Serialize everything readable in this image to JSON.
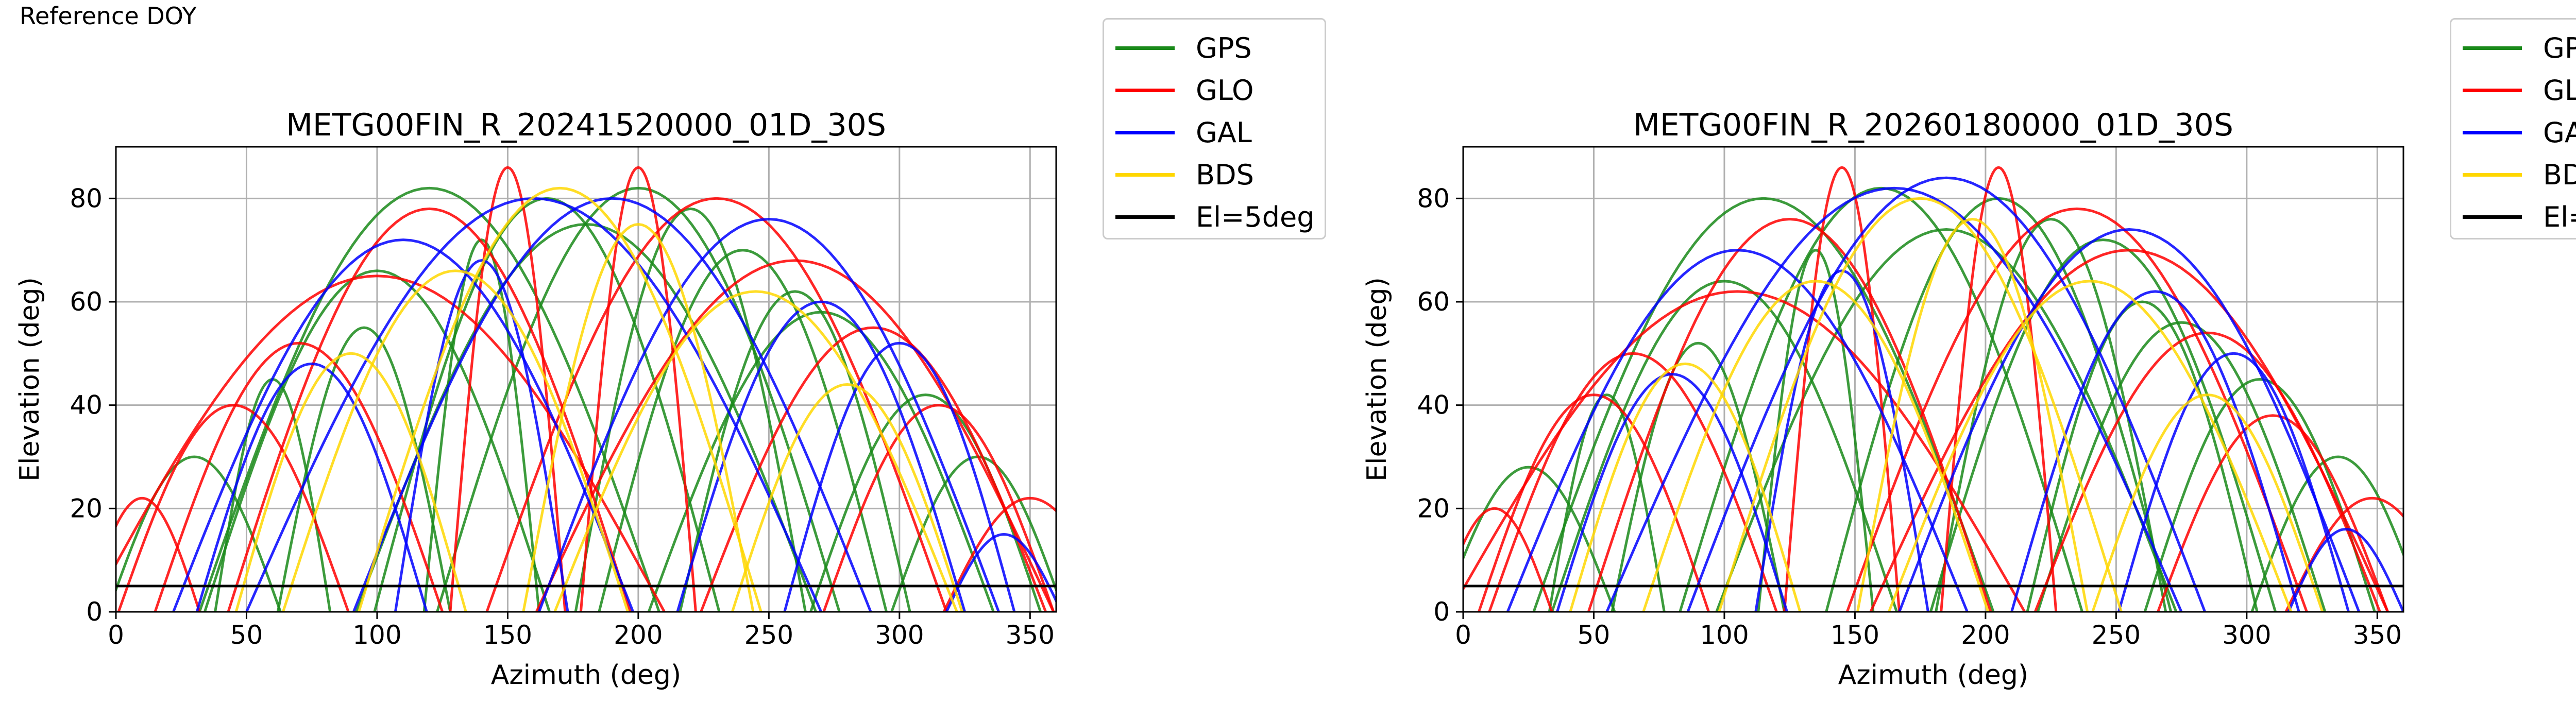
{
  "figure": {
    "suptitle": "Reference DOY"
  },
  "legend": {
    "entries": [
      {
        "label": "GPS",
        "color": "#1a8a1a"
      },
      {
        "label": "GLO",
        "color": "#ff0000"
      },
      {
        "label": "GAL",
        "color": "#0000ff"
      },
      {
        "label": "BDS",
        "color": "#ffd700"
      },
      {
        "label": "El=5deg",
        "color": "#000000"
      }
    ]
  },
  "chart_data": [
    {
      "type": "scatter",
      "title": "METG00FIN_R_20241520000_01D_30S",
      "xlabel": "Azimuth (deg)",
      "ylabel": "Elevation (deg)",
      "xlim": [
        0,
        360
      ],
      "ylim": [
        0,
        90
      ],
      "xticks": [
        0,
        50,
        100,
        150,
        200,
        250,
        300,
        350
      ],
      "yticks": [
        0,
        20,
        40,
        60,
        80
      ],
      "grid": true,
      "legend_position": "outside-right",
      "threshold_line": {
        "label": "El=5deg",
        "y": 5
      },
      "series": [
        {
          "name": "GPS",
          "color": "#1a8a1a",
          "arcs": [
            [
              120,
              40,
              82
            ],
            [
              165,
              30,
              80
            ],
            [
              200,
              35,
              82
            ],
            [
              240,
              25,
              70
            ],
            [
              95,
              15,
              55
            ],
            [
              270,
              30,
              58
            ],
            [
              60,
              10,
              45
            ],
            [
              310,
              20,
              42
            ],
            [
              140,
              10,
              72
            ],
            [
              220,
              20,
              78
            ],
            [
              180,
              40,
              75
            ],
            [
              100,
              30,
              66
            ],
            [
              260,
              20,
              62
            ],
            [
              30,
              15,
              30
            ],
            [
              330,
              15,
              30
            ]
          ]
        },
        {
          "name": "GLO",
          "color": "#ff0000",
          "arcs": [
            [
              100,
              50,
              65
            ],
            [
              260,
              45,
              68
            ],
            [
              45,
              20,
              40
            ],
            [
              315,
              20,
              40
            ],
            [
              150,
              10,
              86
            ],
            [
              200,
              10,
              86
            ],
            [
              70,
              25,
              52
            ],
            [
              290,
              30,
              55
            ],
            [
              10,
              10,
              22
            ],
            [
              350,
              15,
              22
            ],
            [
              120,
              35,
              78
            ],
            [
              230,
              40,
              80
            ]
          ]
        },
        {
          "name": "GAL",
          "color": "#0000ff",
          "arcs": [
            [
              110,
              40,
              72
            ],
            [
              190,
              45,
              80
            ],
            [
              250,
              40,
              76
            ],
            [
              300,
              20,
              52
            ],
            [
              140,
              15,
              68
            ],
            [
              75,
              20,
              48
            ],
            [
              160,
              50,
              80
            ],
            [
              270,
              25,
              60
            ],
            [
              340,
              10,
              15
            ]
          ]
        },
        {
          "name": "BDS",
          "color": "#ffd700",
          "arcs": [
            [
              130,
              30,
              66
            ],
            [
              200,
              20,
              75
            ],
            [
              245,
              35,
              62
            ],
            [
              90,
              20,
              50
            ],
            [
              170,
              35,
              82
            ],
            [
              280,
              20,
              44
            ]
          ]
        }
      ]
    },
    {
      "type": "scatter",
      "title": "METG00FIN_R_20260180000_01D_30S",
      "xlabel": "Azimuth (deg)",
      "ylabel": "Elevation (deg)",
      "xlim": [
        0,
        360
      ],
      "ylim": [
        0,
        90
      ],
      "xticks": [
        0,
        50,
        100,
        150,
        200,
        250,
        300,
        350
      ],
      "yticks": [
        0,
        20,
        40,
        60,
        80
      ],
      "grid": true,
      "legend_position": "outside-right",
      "threshold_line": {
        "label": "El=5deg",
        "y": 5
      },
      "series": [
        {
          "name": "GPS",
          "color": "#1a8a1a",
          "arcs": [
            [
              115,
              40,
              80
            ],
            [
              160,
              35,
              82
            ],
            [
              205,
              30,
              80
            ],
            [
              245,
              30,
              72
            ],
            [
              90,
              15,
              52
            ],
            [
              275,
              25,
              56
            ],
            [
              55,
              10,
              42
            ],
            [
              305,
              20,
              45
            ],
            [
              135,
              10,
              70
            ],
            [
              225,
              20,
              76
            ],
            [
              185,
              40,
              74
            ],
            [
              100,
              30,
              64
            ],
            [
              260,
              20,
              60
            ],
            [
              25,
              15,
              28
            ],
            [
              335,
              15,
              30
            ]
          ]
        },
        {
          "name": "GLO",
          "color": "#ff0000",
          "arcs": [
            [
              105,
              50,
              62
            ],
            [
              255,
              45,
              70
            ],
            [
              50,
              20,
              42
            ],
            [
              310,
              20,
              38
            ],
            [
              145,
              10,
              86
            ],
            [
              205,
              10,
              86
            ],
            [
              65,
              25,
              50
            ],
            [
              285,
              30,
              54
            ],
            [
              12,
              10,
              20
            ],
            [
              348,
              15,
              22
            ],
            [
              125,
              35,
              76
            ],
            [
              235,
              40,
              78
            ]
          ]
        },
        {
          "name": "GAL",
          "color": "#0000ff",
          "arcs": [
            [
              105,
              40,
              70
            ],
            [
              185,
              45,
              84
            ],
            [
              255,
              40,
              74
            ],
            [
              295,
              20,
              50
            ],
            [
              145,
              15,
              66
            ],
            [
              80,
              20,
              46
            ],
            [
              165,
              50,
              82
            ],
            [
              265,
              25,
              62
            ],
            [
              338,
              10,
              16
            ]
          ]
        },
        {
          "name": "BDS",
          "color": "#ffd700",
          "arcs": [
            [
              135,
              30,
              64
            ],
            [
              195,
              20,
              76
            ],
            [
              240,
              35,
              64
            ],
            [
              85,
              20,
              48
            ],
            [
              175,
              35,
              80
            ],
            [
              285,
              20,
              42
            ]
          ]
        }
      ]
    }
  ]
}
